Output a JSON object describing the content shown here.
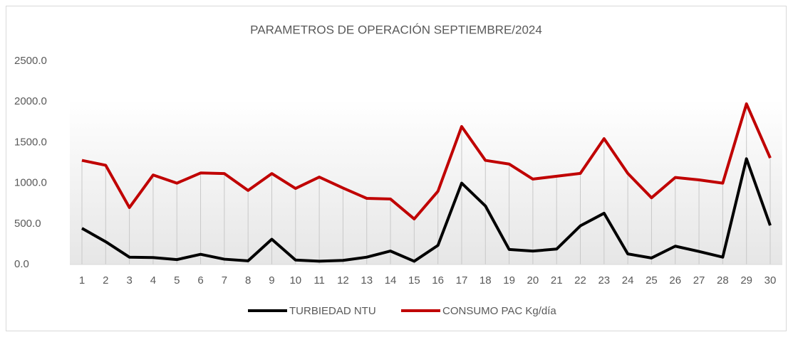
{
  "chart_data": {
    "type": "line",
    "title": "PARAMETROS DE OPERACIÓN SEPTIEMBRE/2024",
    "categories": [
      "1",
      "2",
      "3",
      "4",
      "5",
      "6",
      "7",
      "8",
      "9",
      "10",
      "11",
      "12",
      "13",
      "14",
      "15",
      "16",
      "17",
      "18",
      "19",
      "20",
      "21",
      "22",
      "23",
      "24",
      "25",
      "26",
      "27",
      "28",
      "29",
      "30"
    ],
    "series": [
      {
        "name": "TURBIEDAD NTU",
        "color": "#000000",
        "values": [
          445,
          280,
          90,
          85,
          60,
          125,
          65,
          45,
          310,
          55,
          40,
          50,
          90,
          165,
          40,
          235,
          1000,
          720,
          185,
          165,
          190,
          475,
          630,
          130,
          80,
          225,
          160,
          90,
          1300,
          480
        ]
      },
      {
        "name": "CONSUMO PAC Kg/día",
        "color": "#c00000",
        "values": [
          1280,
          1220,
          700,
          1100,
          1000,
          1125,
          1118,
          910,
          1118,
          935,
          1075,
          940,
          813,
          805,
          560,
          900,
          1696,
          1280,
          1235,
          1050,
          1085,
          1120,
          1547,
          1120,
          820,
          1070,
          1040,
          1000,
          1975,
          1310
        ]
      }
    ],
    "ylim": [
      0,
      2500
    ],
    "yticks": [
      {
        "value": 0,
        "label": "0.0"
      },
      {
        "value": 500,
        "label": "500.0"
      },
      {
        "value": 1000,
        "label": "1000.0"
      },
      {
        "value": 1500,
        "label": "1500.0"
      },
      {
        "value": 2000,
        "label": "2000.0"
      },
      {
        "value": 2500,
        "label": "2500.0"
      }
    ],
    "legend": "bottom"
  }
}
